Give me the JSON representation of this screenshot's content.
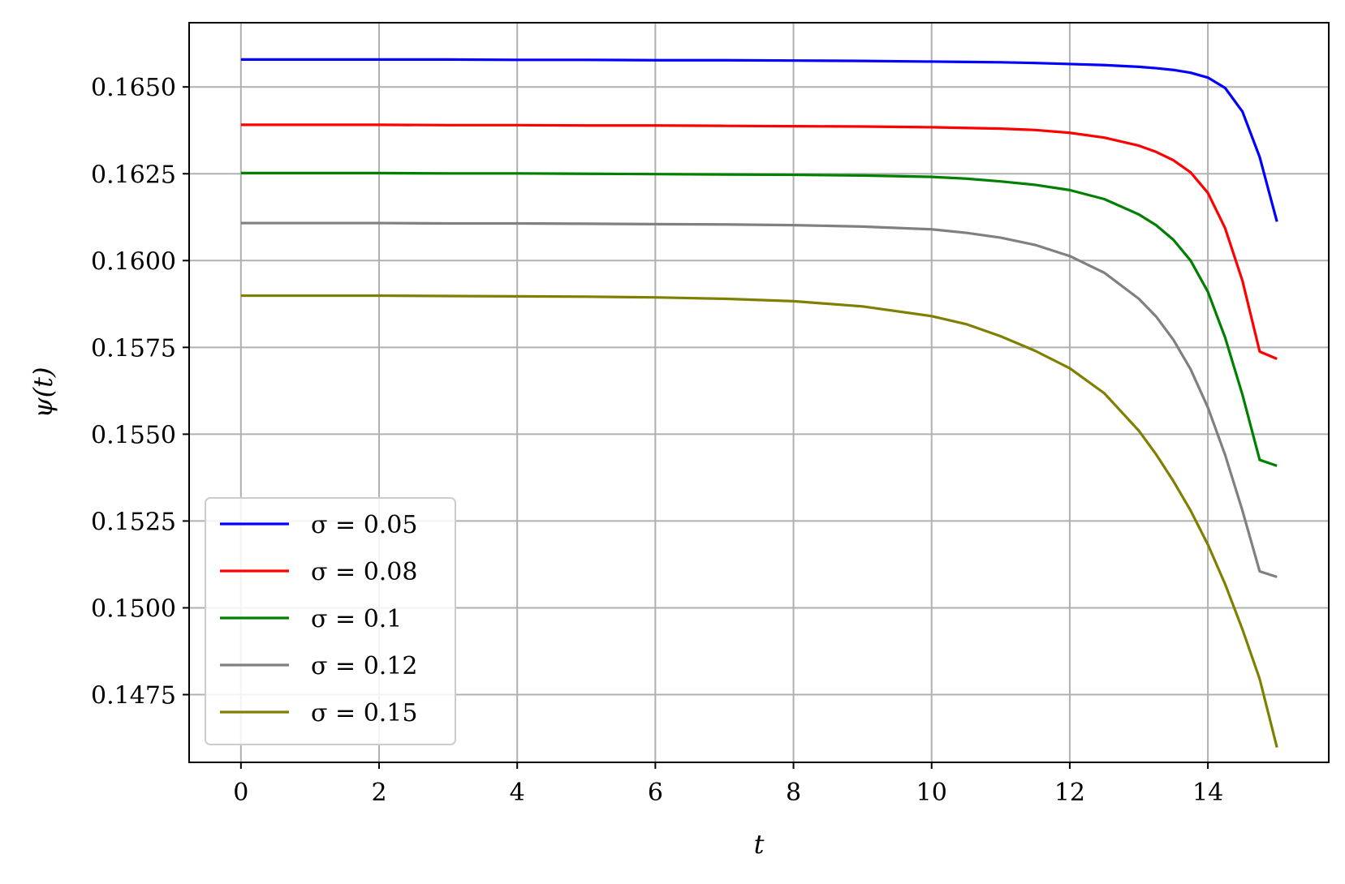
{
  "chart_data": {
    "type": "line",
    "xlabel": "t",
    "ylabel": "ψ(t)",
    "xlim": [
      -0.75,
      15.75
    ],
    "ylim": [
      0.14555,
      0.16685
    ],
    "x_ticks": [
      0,
      2,
      4,
      6,
      8,
      10,
      12,
      14
    ],
    "x_tick_labels": [
      "0",
      "2",
      "4",
      "6",
      "8",
      "10",
      "12",
      "14"
    ],
    "y_ticks": [
      0.1475,
      0.15,
      0.1525,
      0.155,
      0.1575,
      0.16,
      0.1625,
      0.165
    ],
    "y_tick_labels": [
      "0.1475",
      "0.1500",
      "0.1525",
      "0.1550",
      "0.1575",
      "0.1600",
      "0.1625",
      "0.1650"
    ],
    "grid": true,
    "legend_position": "lower-left",
    "x": [
      0,
      1,
      2,
      3,
      4,
      5,
      6,
      7,
      8,
      9,
      10,
      10.5,
      11,
      11.5,
      12,
      12.5,
      13,
      13.25,
      13.5,
      13.75,
      14,
      14.25,
      14.5,
      14.75,
      15
    ],
    "series": [
      {
        "name": "σ = 0.05",
        "color": "#0000ff",
        "values": [
          0.16579,
          0.16579,
          0.16579,
          0.16579,
          0.16578,
          0.16578,
          0.16577,
          0.16577,
          0.16576,
          0.16575,
          0.16573,
          0.16572,
          0.16571,
          0.16569,
          0.16566,
          0.16563,
          0.16558,
          0.16554,
          0.16549,
          0.16541,
          0.16527,
          0.16497,
          0.16429,
          0.16298,
          0.16112
        ]
      },
      {
        "name": "σ = 0.08",
        "color": "#ff0000",
        "values": [
          0.16391,
          0.16391,
          0.16391,
          0.1639,
          0.1639,
          0.16389,
          0.16389,
          0.16388,
          0.16387,
          0.16386,
          0.16384,
          0.16382,
          0.1638,
          0.16376,
          0.16368,
          0.16354,
          0.16331,
          0.16313,
          0.16289,
          0.16254,
          0.16195,
          0.16093,
          0.15942,
          0.15738,
          0.15717
        ]
      },
      {
        "name": "σ = 0.1",
        "color": "#008000",
        "values": [
          0.16252,
          0.16252,
          0.16252,
          0.16251,
          0.16251,
          0.1625,
          0.16249,
          0.16248,
          0.16247,
          0.16245,
          0.16241,
          0.16236,
          0.16228,
          0.16218,
          0.16203,
          0.16177,
          0.16133,
          0.16102,
          0.1606,
          0.16,
          0.1591,
          0.15778,
          0.15614,
          0.15426,
          0.15409
        ]
      },
      {
        "name": "σ = 0.12",
        "color": "#808080",
        "values": [
          0.16108,
          0.16108,
          0.16108,
          0.16107,
          0.16107,
          0.16106,
          0.16105,
          0.16104,
          0.16102,
          0.16098,
          0.1609,
          0.1608,
          0.16066,
          0.16045,
          0.16013,
          0.15965,
          0.1589,
          0.15839,
          0.15772,
          0.15687,
          0.15577,
          0.1544,
          0.1528,
          0.15105,
          0.15089
        ]
      },
      {
        "name": "σ = 0.15",
        "color": "#808000",
        "values": [
          0.15899,
          0.15899,
          0.15899,
          0.15898,
          0.15897,
          0.15896,
          0.15894,
          0.1589,
          0.15883,
          0.15868,
          0.1584,
          0.15817,
          0.15782,
          0.1574,
          0.1569,
          0.15618,
          0.1551,
          0.15442,
          0.15365,
          0.1528,
          0.15182,
          0.15068,
          0.14938,
          0.14795,
          0.14598
        ]
      }
    ]
  }
}
